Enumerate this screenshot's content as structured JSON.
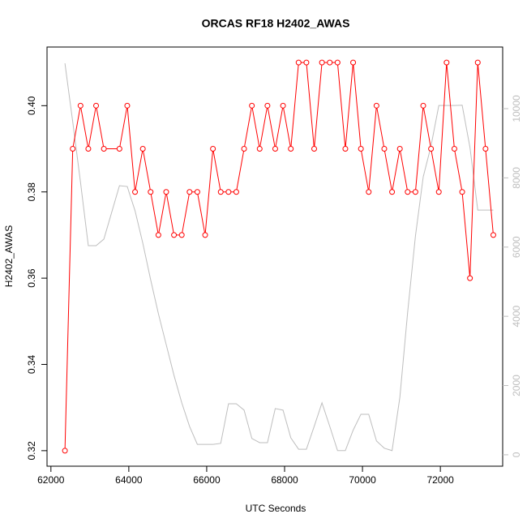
{
  "chart_data": {
    "type": "line",
    "title": "ORCAS RF18 H2402_AWAS",
    "xlabel": "UTC Seconds",
    "ylabel": "H2402_AWAS",
    "x": [
      62360,
      62560,
      62760,
      62960,
      63160,
      63360,
      63760,
      63960,
      64160,
      64360,
      64560,
      64760,
      64960,
      65160,
      65360,
      65560,
      65760,
      65960,
      66160,
      66360,
      66560,
      66760,
      66960,
      67160,
      67360,
      67560,
      67760,
      67960,
      68160,
      68360,
      68560,
      68760,
      68960,
      69160,
      69360,
      69560,
      69760,
      69960,
      70160,
      70360,
      70560,
      70760,
      70960,
      71160,
      71360,
      71560,
      71760,
      71960,
      72160,
      72360,
      72560,
      72760,
      72960,
      73160,
      73360
    ],
    "series": [
      {
        "color": "#ff0000",
        "markers": true,
        "values": [
          0.32,
          0.39,
          0.4,
          0.39,
          0.4,
          0.39,
          0.39,
          0.4,
          0.38,
          0.39,
          0.38,
          0.37,
          0.38,
          0.37,
          0.37,
          0.38,
          0.38,
          0.37,
          0.39,
          0.38,
          0.38,
          0.38,
          0.39,
          0.4,
          0.39,
          0.4,
          0.39,
          0.4,
          0.39,
          0.41,
          0.41,
          0.39,
          0.41,
          0.41,
          0.41,
          0.39,
          0.41,
          0.39,
          0.38,
          0.4,
          0.39,
          0.38,
          0.39,
          0.38,
          0.38,
          0.4,
          0.39,
          0.38,
          0.41,
          0.39,
          0.38,
          0.36,
          0.41,
          0.39,
          0.37
        ]
      },
      {
        "color": "#bebebe",
        "axis": "y2",
        "markers": false,
        "values": [
          11310,
          9620,
          7870,
          6040,
          6040,
          6230,
          7775,
          7750,
          7050,
          6110,
          5060,
          4075,
          3185,
          2295,
          1500,
          820,
          300,
          300,
          300,
          330,
          1475,
          1475,
          1290,
          470,
          350,
          350,
          1335,
          1290,
          490,
          160,
          160,
          820,
          1500,
          820,
          120,
          120,
          710,
          1170,
          1170,
          400,
          190,
          120,
          1660,
          4120,
          6320,
          8030,
          8920,
          10090,
          10090,
          10090,
          10100,
          8880,
          7070,
          7070,
          7070
        ]
      }
    ],
    "xlim": [
      61900,
      73600
    ],
    "xticks": [
      62000,
      64000,
      66000,
      68000,
      70000,
      72000
    ],
    "ylim": [
      0.3164,
      0.4136
    ],
    "yticks": [
      0.32,
      0.34,
      0.36,
      0.38,
      {
        "value": 0.4,
        "label": "0.40"
      }
    ],
    "y2lim": [
      -330,
      11780
    ],
    "y2ticks": [
      0,
      2000,
      4000,
      6000,
      8000,
      10000
    ],
    "y2color": "#bebebe"
  }
}
